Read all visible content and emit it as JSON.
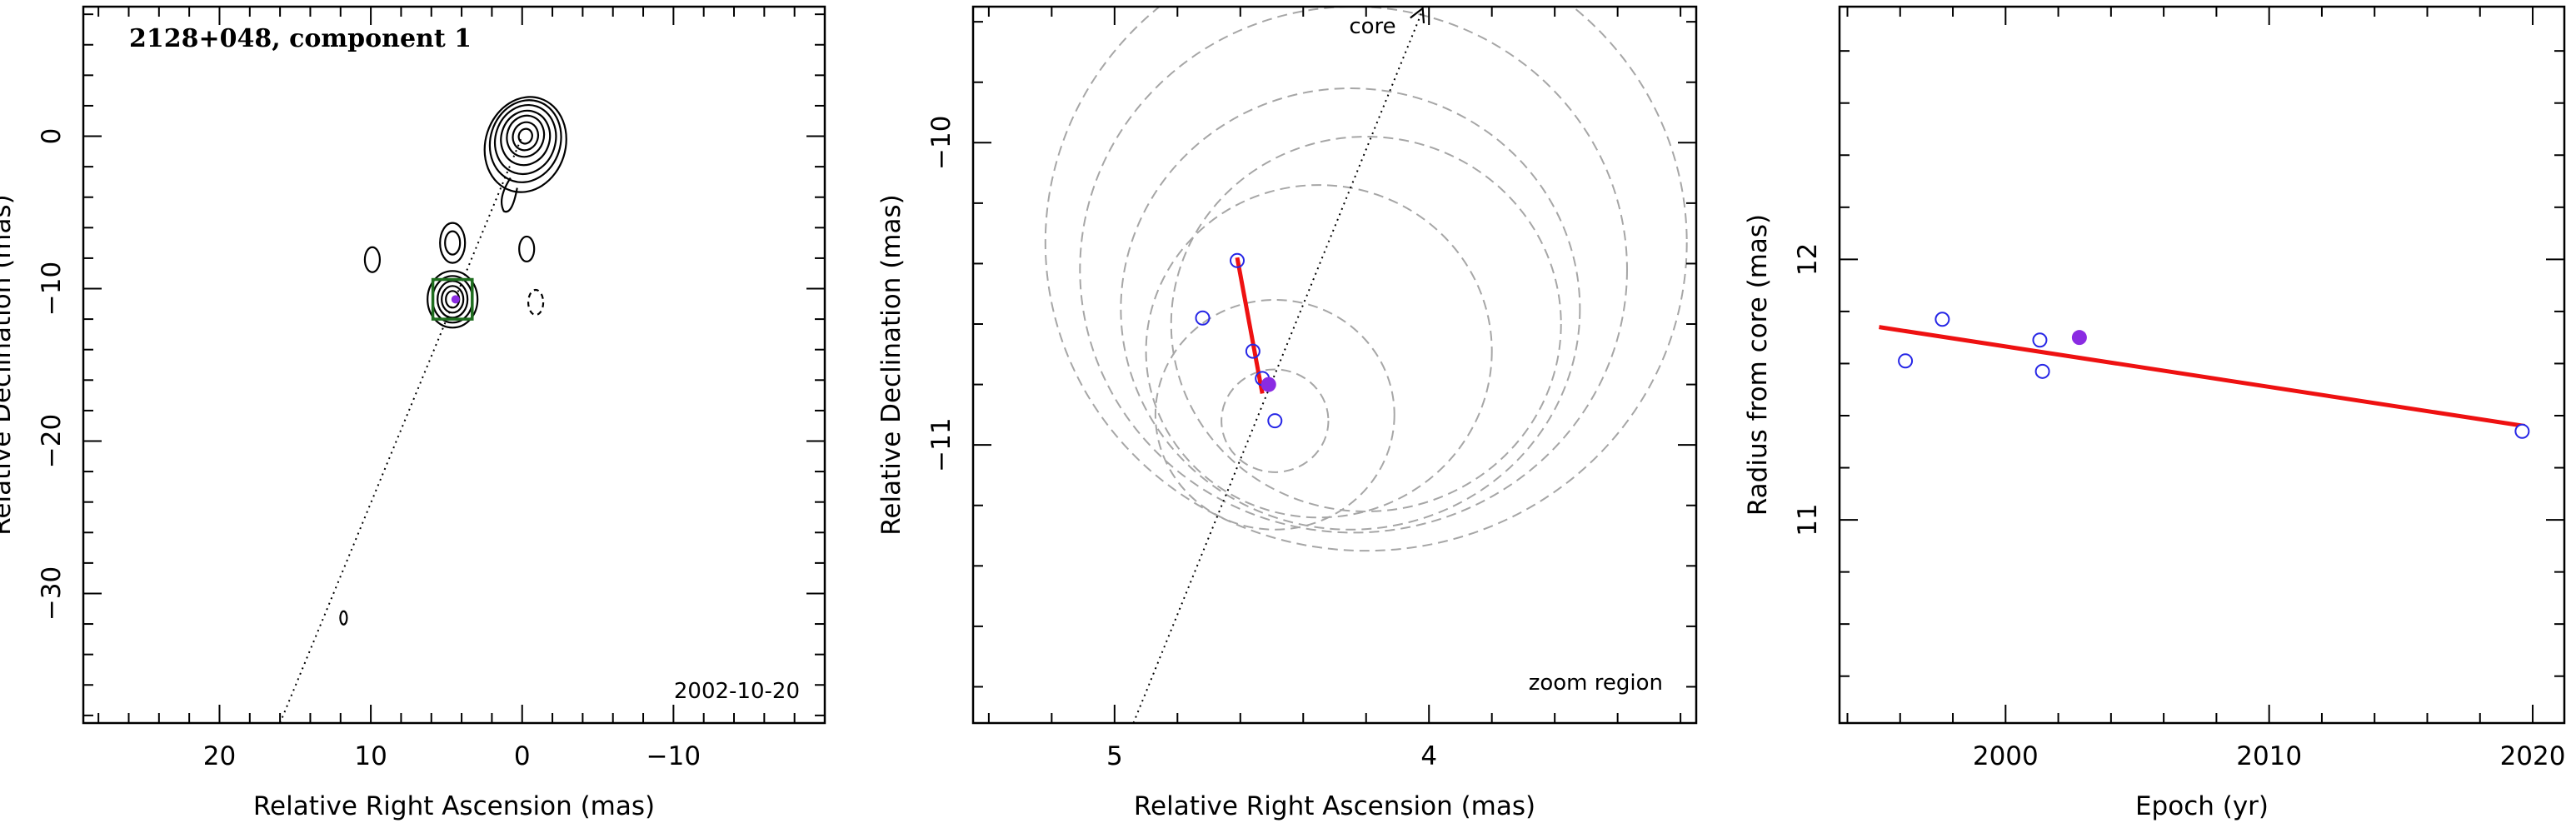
{
  "chart_data": [
    {
      "type": "scatter",
      "panel": "contour-map",
      "title": "2128+048, component 1",
      "date": "2002-10-20",
      "xlabel": "Relative Right Ascension (mas)",
      "ylabel": "Relative Declination (mas)",
      "xlim": [
        29,
        -20
      ],
      "ylim": [
        -38.5,
        8.5
      ],
      "xticks": [
        20,
        10,
        0,
        -10
      ],
      "yticks": [
        0,
        -10,
        -20,
        -30
      ],
      "jet_axis": [
        [
          16,
          -38.5
        ],
        [
          0,
          0
        ]
      ],
      "component_box": {
        "ra": 4.6,
        "dec": -10.7,
        "size": 2.6
      },
      "component_marker": {
        "ra": 4.4,
        "dec": -10.7
      },
      "core": {
        "ra": 0,
        "dec": 0
      },
      "side_features": [
        {
          "ra": 9.9,
          "dec": -8.1
        },
        {
          "ra": -0.3,
          "dec": -7.4
        },
        {
          "ra": -0.9,
          "dec": -10.9,
          "dashed": true
        },
        {
          "ra": 11.8,
          "dec": -31.6
        }
      ]
    },
    {
      "type": "scatter",
      "panel": "zoom-region",
      "label": "zoom region",
      "arrow_label": "core",
      "xlabel": "Relative Right Ascension (mas)",
      "ylabel": "Relative Declination (mas)",
      "xlim": [
        5.45,
        3.15
      ],
      "ylim": [
        -11.92,
        -9.55
      ],
      "xticks": [
        5,
        4
      ],
      "yticks": [
        -10,
        -11
      ],
      "points_open": [
        {
          "ra": 4.61,
          "dec": -10.39
        },
        {
          "ra": 4.72,
          "dec": -10.58
        },
        {
          "ra": 4.56,
          "dec": -10.69
        },
        {
          "ra": 4.53,
          "dec": -10.78
        },
        {
          "ra": 4.49,
          "dec": -10.92
        }
      ],
      "point_filled": {
        "ra": 4.51,
        "dec": -10.8
      },
      "fit_line": [
        [
          4.61,
          -10.38
        ],
        [
          4.53,
          -10.83
        ]
      ],
      "circles": [
        {
          "ra": 4.49,
          "dec": -10.92,
          "r": 0.17
        },
        {
          "ra": 4.49,
          "dec": -10.9,
          "r": 0.38
        },
        {
          "ra": 4.35,
          "dec": -10.69,
          "r": 0.55
        },
        {
          "ra": 4.2,
          "dec": -10.6,
          "r": 0.62
        },
        {
          "ra": 4.25,
          "dec": -10.55,
          "r": 0.73
        },
        {
          "ra": 4.24,
          "dec": -10.42,
          "r": 0.87
        },
        {
          "ra": 4.2,
          "dec": -10.33,
          "r": 1.02
        }
      ],
      "jet_axis": [
        [
          4.94,
          -11.92
        ],
        [
          4.02,
          -9.55
        ]
      ]
    },
    {
      "type": "scatter",
      "panel": "radius-vs-epoch",
      "xlabel": "Epoch (yr)",
      "ylabel": "Radius from core (mas)",
      "xlim": [
        1993.7,
        2021.2
      ],
      "ylim": [
        10.22,
        12.97
      ],
      "xticks": [
        2000,
        2010,
        2020
      ],
      "yticks": [
        11,
        12
      ],
      "points_open": [
        {
          "x": 1996.2,
          "y": 11.61
        },
        {
          "x": 1997.6,
          "y": 11.77
        },
        {
          "x": 2001.3,
          "y": 11.69
        },
        {
          "x": 2001.4,
          "y": 11.57
        },
        {
          "x": 2019.6,
          "y": 11.34
        }
      ],
      "point_filled": {
        "x": 2002.8,
        "y": 11.7
      },
      "fit_line": [
        [
          1995.2,
          11.74
        ],
        [
          2019.7,
          11.36
        ]
      ]
    }
  ],
  "colors": {
    "axis": "#000000",
    "open_point": "#2626e6",
    "filled_point": "#8a2be2",
    "fit_line": "#ee1111",
    "circle": "#a6a6a6",
    "box": "#1f6e1f",
    "contour": "#000000"
  }
}
